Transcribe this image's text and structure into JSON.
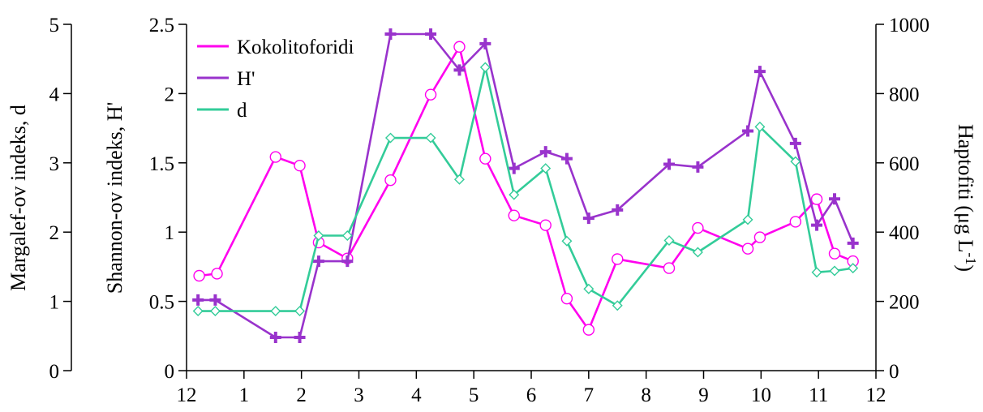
{
  "chart_data": {
    "type": "line",
    "x_axis": {
      "ticks": [
        0,
        1,
        2,
        3,
        4,
        5,
        6,
        7,
        8,
        9,
        10,
        11,
        12
      ],
      "tick_labels": [
        "12",
        "1",
        "2",
        "3",
        "4",
        "5",
        "6",
        "7",
        "8",
        "9",
        "10",
        "11",
        "12"
      ],
      "range": [
        0,
        12
      ]
    },
    "axes": {
      "margalef": {
        "label": "Margalef-ov indeks, d",
        "range": [
          0,
          5
        ],
        "ticks": [
          0,
          1,
          2,
          3,
          4,
          5
        ],
        "tick_labels": [
          "0",
          "1",
          "2",
          "3",
          "4",
          "5"
        ]
      },
      "shannon": {
        "label": "Shannon-ov indeks, H'",
        "range": [
          0,
          2.5
        ],
        "ticks": [
          0,
          0.5,
          1,
          1.5,
          2,
          2.5
        ],
        "tick_labels": [
          "0",
          "0.5",
          "1",
          "1.5",
          "2",
          "2.5"
        ]
      },
      "haptofiti": {
        "label_main": "Haptofiti (μg L",
        "label_sup": "-1",
        "label_end": ")",
        "range": [
          0,
          1000
        ],
        "ticks": [
          0,
          200,
          400,
          600,
          800,
          1000
        ],
        "tick_labels": [
          "0",
          "200",
          "400",
          "600",
          "800",
          "1000"
        ]
      }
    },
    "legend": {
      "position": "top-left"
    },
    "series": [
      {
        "name": "Kokolitoforidi",
        "axis": "haptofiti",
        "color": "#ff00ee",
        "marker": "circle",
        "x": [
          0.22,
          0.53,
          1.55,
          1.97,
          2.3,
          2.8,
          3.55,
          4.25,
          4.75,
          5.2,
          5.7,
          6.25,
          6.62,
          7.0,
          7.5,
          8.4,
          8.9,
          9.77,
          9.98,
          10.6,
          10.97,
          11.28,
          11.6
        ],
        "y": [
          274,
          280,
          617,
          592,
          370,
          324,
          550,
          797,
          935,
          612,
          448,
          420,
          208,
          118,
          322,
          296,
          412,
          352,
          385,
          430,
          495,
          338,
          316
        ]
      },
      {
        "name": "H'",
        "axis": "shannon",
        "color": "#9933cc",
        "marker": "plus",
        "x": [
          0.2,
          0.5,
          1.55,
          1.97,
          2.3,
          2.8,
          3.55,
          4.25,
          4.75,
          5.2,
          5.7,
          6.25,
          6.62,
          7.0,
          7.5,
          8.4,
          8.9,
          9.77,
          9.98,
          10.6,
          10.97,
          11.28,
          11.6
        ],
        "y": [
          0.51,
          0.51,
          0.24,
          0.24,
          0.79,
          0.79,
          2.43,
          2.43,
          2.17,
          2.36,
          1.46,
          1.58,
          1.53,
          1.1,
          1.16,
          1.49,
          1.47,
          1.73,
          2.16,
          1.64,
          1.05,
          1.24,
          0.92
        ]
      },
      {
        "name": "d",
        "axis": "margalef",
        "color": "#33cc99",
        "marker": "diamond",
        "x": [
          0.2,
          0.5,
          1.55,
          1.97,
          2.3,
          2.8,
          3.55,
          4.25,
          4.75,
          5.2,
          5.7,
          6.25,
          6.62,
          7.0,
          7.5,
          8.4,
          8.9,
          9.77,
          9.98,
          10.6,
          10.97,
          11.28,
          11.6
        ],
        "y": [
          0.86,
          0.86,
          0.86,
          0.86,
          1.95,
          1.95,
          3.36,
          3.36,
          2.76,
          4.38,
          2.54,
          2.92,
          1.87,
          1.18,
          0.94,
          1.88,
          1.71,
          2.18,
          3.52,
          3.02,
          1.42,
          1.44,
          1.48
        ]
      }
    ]
  }
}
